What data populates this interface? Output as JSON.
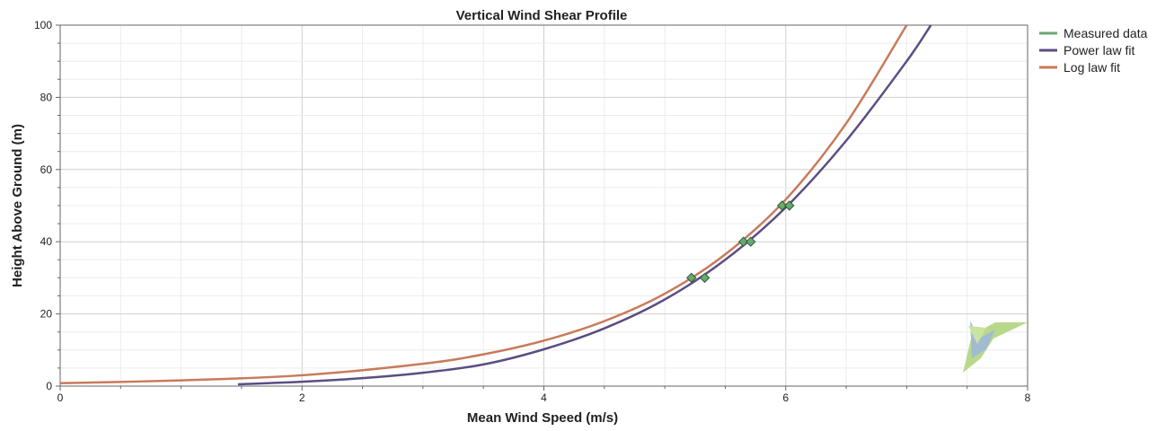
{
  "chart_data": {
    "type": "line",
    "title": "Vertical Wind Shear Profile",
    "xlabel": "Mean Wind Speed (m/s)",
    "ylabel": "Height Above Ground (m)",
    "xlim": [
      0,
      8
    ],
    "ylim": [
      0,
      100
    ],
    "x_ticks": [
      0,
      2,
      4,
      6,
      8
    ],
    "y_ticks": [
      0,
      20,
      40,
      60,
      80,
      100
    ],
    "grid": true,
    "legend_position": "right",
    "series": [
      {
        "name": "Measured data",
        "kind": "scatter",
        "color": "#6aa872",
        "points": [
          [
            5.22,
            30
          ],
          [
            5.33,
            30
          ],
          [
            5.65,
            40
          ],
          [
            5.71,
            40
          ],
          [
            5.97,
            50
          ],
          [
            6.03,
            50
          ]
        ]
      },
      {
        "name": "Power law fit",
        "kind": "line",
        "color": "#5a4e82",
        "points": [
          [
            1.47,
            0.5
          ],
          [
            2.0,
            1.2
          ],
          [
            2.5,
            2.2
          ],
          [
            3.0,
            3.7
          ],
          [
            3.5,
            6.0
          ],
          [
            4.0,
            10.2
          ],
          [
            4.5,
            16.0
          ],
          [
            5.0,
            24.0
          ],
          [
            5.5,
            35.0
          ],
          [
            6.0,
            49.5
          ],
          [
            6.5,
            68.0
          ],
          [
            7.0,
            90.0
          ],
          [
            7.2,
            100.0
          ]
        ]
      },
      {
        "name": "Log law fit",
        "kind": "line",
        "color": "#c87a5a",
        "points": [
          [
            0.0,
            0.8
          ],
          [
            1.0,
            1.6
          ],
          [
            2.0,
            3.0
          ],
          [
            3.0,
            6.2
          ],
          [
            3.5,
            8.8
          ],
          [
            4.0,
            12.6
          ],
          [
            4.5,
            18.0
          ],
          [
            5.0,
            25.6
          ],
          [
            5.5,
            36.5
          ],
          [
            6.0,
            51.7
          ],
          [
            6.5,
            72.8
          ],
          [
            7.0,
            100.0
          ]
        ]
      }
    ]
  }
}
